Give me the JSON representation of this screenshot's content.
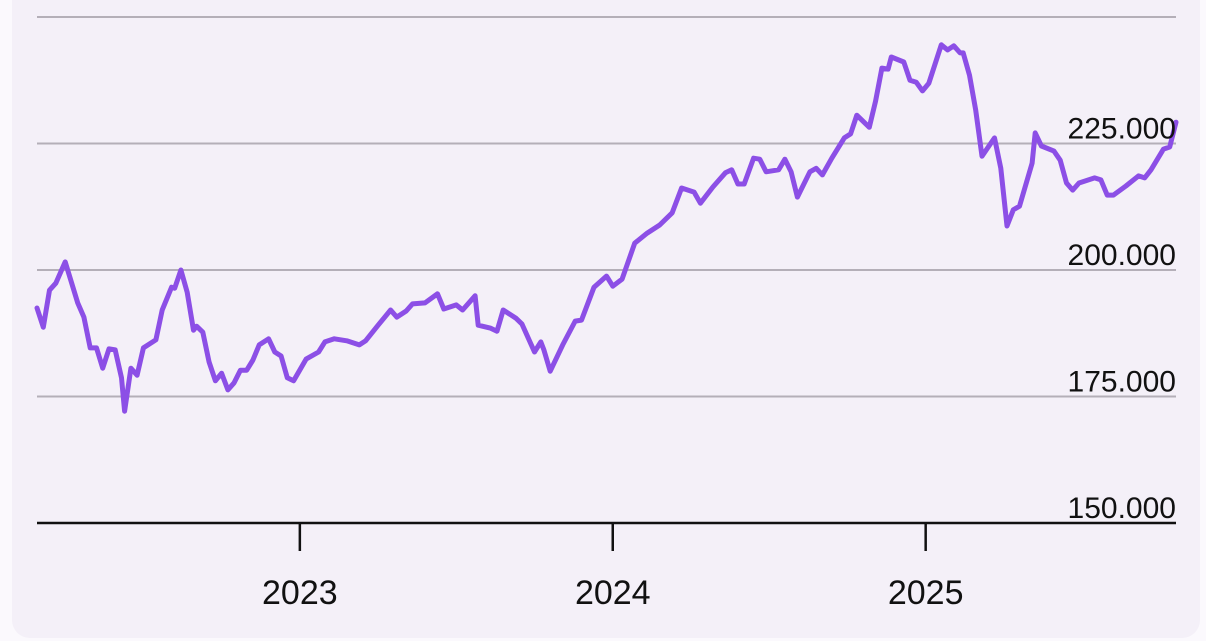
{
  "chart_data": {
    "type": "line",
    "color": "#8c4fe6",
    "grid": true,
    "x": [
      2022.16,
      2022.18,
      2022.2,
      2022.22,
      2022.25,
      2022.29,
      2022.31,
      2022.33,
      2022.35,
      2022.37,
      2022.39,
      2022.41,
      2022.43,
      2022.44,
      2022.46,
      2022.48,
      2022.5,
      2022.54,
      2022.56,
      2022.59,
      2022.6,
      2022.62,
      2022.64,
      2022.66,
      2022.67,
      2022.69,
      2022.71,
      2022.73,
      2022.75,
      2022.77,
      2022.79,
      2022.81,
      2022.83,
      2022.85,
      2022.87,
      2022.9,
      2022.92,
      2022.94,
      2022.96,
      2022.98,
      2023.02,
      2023.06,
      2023.08,
      2023.11,
      2023.15,
      2023.19,
      2023.21,
      2023.25,
      2023.29,
      2023.31,
      2023.34,
      2023.36,
      2023.4,
      2023.44,
      2023.46,
      2023.5,
      2023.52,
      2023.56,
      2023.57,
      2023.61,
      2023.63,
      2023.65,
      2023.69,
      2023.71,
      2023.75,
      2023.77,
      2023.78,
      2023.8,
      2023.84,
      2023.88,
      2023.9,
      2023.94,
      2023.98,
      2024.0,
      2024.03,
      2024.07,
      2024.11,
      2024.15,
      2024.19,
      2024.22,
      2024.26,
      2024.28,
      2024.32,
      2024.36,
      2024.38,
      2024.4,
      2024.42,
      2024.45,
      2024.47,
      2024.49,
      2024.53,
      2024.55,
      2024.57,
      2024.59,
      2024.63,
      2024.65,
      2024.67,
      2024.7,
      2024.74,
      2024.76,
      2024.78,
      2024.82,
      2024.84,
      2024.86,
      2024.88,
      2024.89,
      2024.93,
      2024.95,
      2024.97,
      2024.99,
      2025.01,
      2025.05,
      2025.07,
      2025.09,
      2025.11,
      2025.12,
      2025.14,
      2025.16,
      2025.18,
      2025.22,
      2025.24,
      2025.26,
      2025.28,
      2025.3,
      2025.34,
      2025.35,
      2025.37,
      2025.41,
      2025.43,
      2025.45,
      2025.47,
      2025.49,
      2025.54,
      2025.56,
      2025.58,
      2025.6,
      2025.64,
      2025.68,
      2025.7,
      2025.72,
      2025.76,
      2025.78,
      2025.8
    ],
    "values": [
      192500,
      188700,
      196000,
      197400,
      201600,
      193500,
      190700,
      184600,
      184600,
      180600,
      184400,
      184200,
      178700,
      172100,
      180600,
      179200,
      184600,
      186200,
      192100,
      196600,
      196400,
      200000,
      195600,
      188100,
      188900,
      187700,
      181800,
      178100,
      179600,
      176300,
      177700,
      180200,
      180200,
      182200,
      185200,
      186400,
      183800,
      183000,
      178700,
      178100,
      182400,
      183800,
      185800,
      186400,
      186000,
      185200,
      186000,
      189100,
      192100,
      190700,
      191900,
      193300,
      193500,
      195300,
      192300,
      193100,
      192100,
      194900,
      189100,
      188500,
      187900,
      192100,
      190500,
      189300,
      183800,
      185800,
      184200,
      180000,
      185200,
      189900,
      190100,
      196600,
      198800,
      196800,
      198200,
      205300,
      207300,
      208900,
      211300,
      216200,
      215400,
      213200,
      216400,
      219200,
      219800,
      217000,
      217000,
      222100,
      221900,
      219400,
      219800,
      221900,
      219400,
      214400,
      219400,
      220100,
      218800,
      222100,
      226100,
      226900,
      230600,
      228200,
      233400,
      239900,
      239700,
      242100,
      241100,
      237500,
      237100,
      235400,
      236900,
      244500,
      243500,
      244300,
      242900,
      242900,
      238500,
      231600,
      222500,
      226100,
      220100,
      208700,
      211900,
      212600,
      221100,
      227100,
      224500,
      223500,
      221700,
      217200,
      215800,
      217200,
      218200,
      217800,
      214800,
      214800,
      216600,
      218600,
      218200,
      219800,
      223900,
      224300,
      229200
    ],
    "xlim": [
      2022.16,
      2025.8
    ],
    "xticks": [
      2023,
      2024,
      2025
    ],
    "ylim": [
      150000,
      250000
    ],
    "yticks": [
      {
        "value": 150000,
        "label": "150.000"
      },
      {
        "value": 175000,
        "label": "175.000"
      },
      {
        "value": 200000,
        "label": "200.000"
      },
      {
        "value": 225000,
        "label": "225.000"
      }
    ]
  }
}
